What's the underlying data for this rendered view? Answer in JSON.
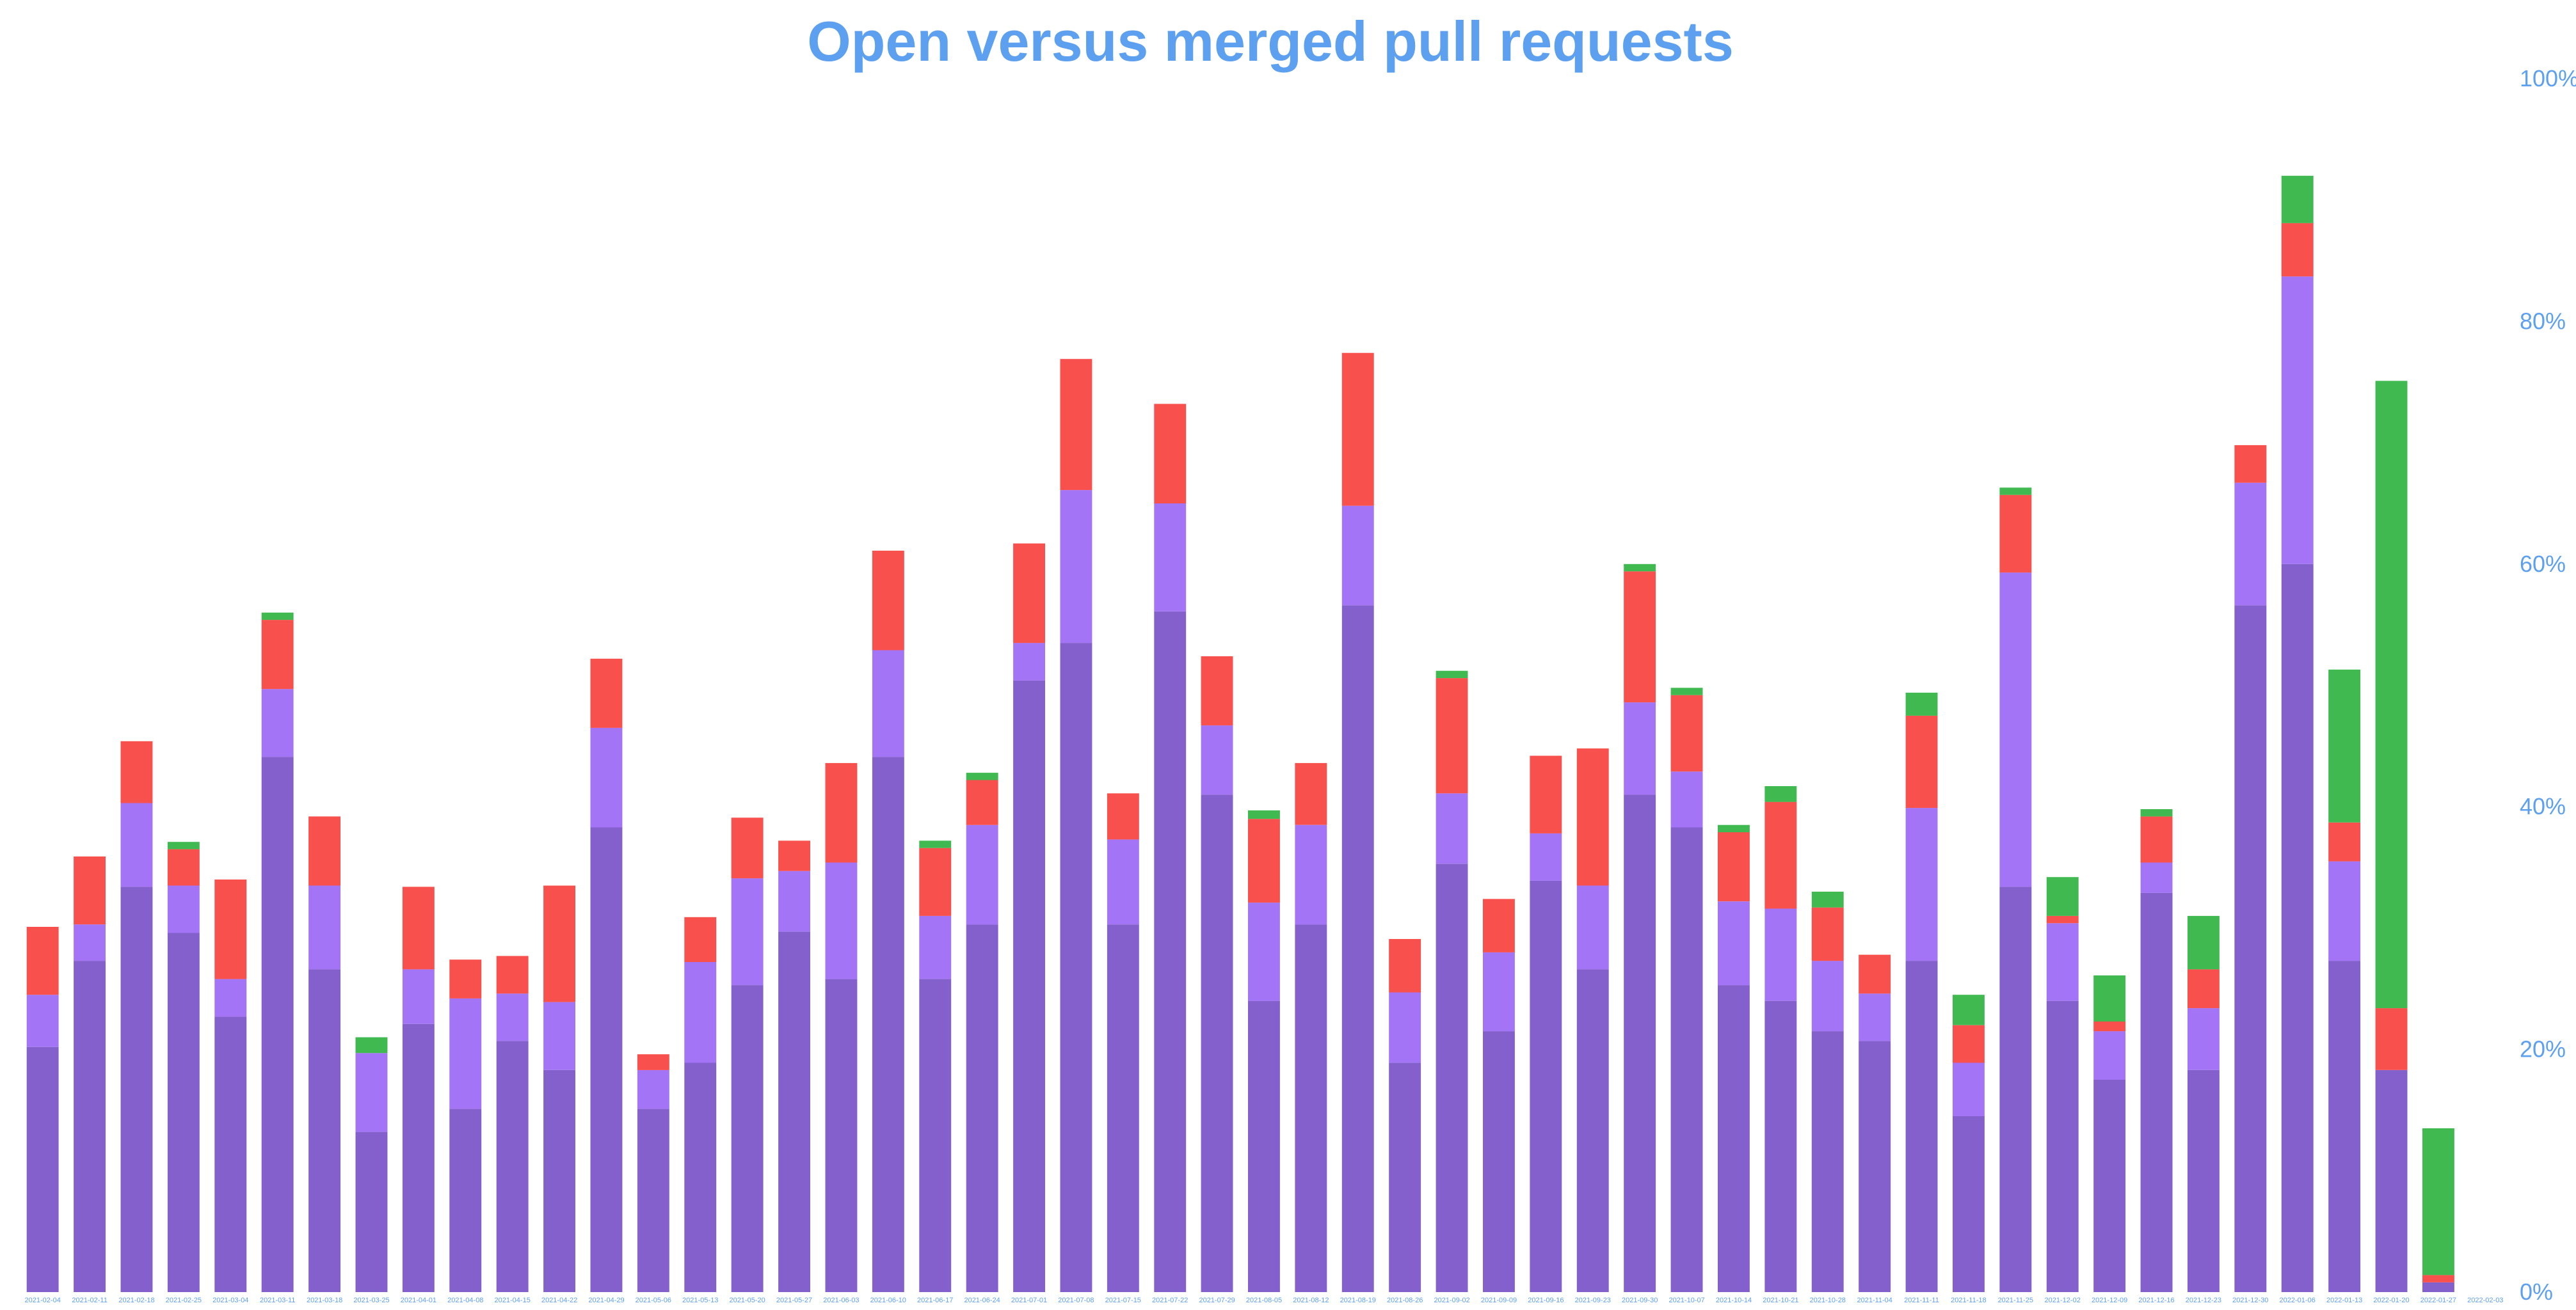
{
  "chart_data": {
    "type": "bar",
    "stacked": true,
    "title": "Open versus merged pull requests",
    "xlabel": "",
    "ylabel": "",
    "ylim": [
      0,
      100
    ],
    "y_axis_position": "right",
    "y_ticks": [
      "0%",
      "20%",
      "40%",
      "60%",
      "80%",
      "100%"
    ],
    "grid": false,
    "legend": "none",
    "colors": [
      "#8360cc",
      "#a375f6",
      "#f8504d",
      "#3fb950"
    ],
    "categories": [
      "2021-02-04",
      "2021-02-11",
      "2021-02-18",
      "2021-02-25",
      "2021-03-04",
      "2021-03-11",
      "2021-03-18",
      "2021-03-25",
      "2021-04-01",
      "2021-04-08",
      "2021-04-15",
      "2021-04-22",
      "2021-04-29",
      "2021-05-06",
      "2021-05-13",
      "2021-05-20",
      "2021-05-27",
      "2021-06-03",
      "2021-06-10",
      "2021-06-17",
      "2021-06-24",
      "2021-07-01",
      "2021-07-08",
      "2021-07-15",
      "2021-07-22",
      "2021-07-29",
      "2021-08-05",
      "2021-08-12",
      "2021-08-19",
      "2021-08-26",
      "2021-09-02",
      "2021-09-09",
      "2021-09-16",
      "2021-09-23",
      "2021-09-30",
      "2021-10-07",
      "2021-10-14",
      "2021-10-21",
      "2021-10-28",
      "2021-11-04",
      "2021-11-11",
      "2021-11-18",
      "2021-11-25",
      "2021-12-02",
      "2021-12-09",
      "2021-12-16",
      "2021-12-23",
      "2021-12-30",
      "2022-01-06",
      "2022-01-13",
      "2022-01-20",
      "2022-01-27",
      "2022-02-03"
    ],
    "series": [
      {
        "values": [
          20.2,
          27.3,
          33.4,
          29.6,
          22.7,
          44.1,
          26.6,
          13.2,
          22.1,
          15.1,
          20.7,
          18.3,
          38.3,
          15.1,
          18.9,
          25.3,
          29.7,
          25.8,
          44.1,
          25.8,
          30.3,
          50.4,
          53.5,
          30.3,
          56.1,
          41.0,
          24.0,
          30.3,
          56.6,
          18.9,
          35.3,
          21.5,
          33.9,
          26.6,
          41.0,
          38.3,
          25.3,
          24.0,
          21.5,
          20.7,
          27.3,
          14.5,
          33.4,
          24.0,
          17.5,
          32.9,
          18.3,
          56.6,
          60.0,
          27.3,
          18.3,
          0.8,
          0.0
        ]
      },
      {
        "values": [
          4.3,
          3.0,
          6.9,
          3.9,
          3.1,
          5.6,
          6.9,
          6.5,
          4.5,
          9.1,
          3.9,
          5.6,
          8.2,
          3.2,
          8.3,
          8.8,
          5.0,
          9.6,
          8.8,
          5.2,
          8.2,
          3.1,
          12.6,
          7.0,
          8.9,
          5.7,
          8.1,
          8.2,
          8.2,
          5.8,
          5.8,
          6.5,
          3.9,
          6.9,
          7.6,
          4.6,
          6.9,
          7.6,
          5.8,
          3.9,
          12.6,
          4.4,
          25.9,
          6.4,
          4.0,
          2.5,
          5.1,
          10.1,
          23.7,
          8.2,
          0.0,
          0.0,
          0.0
        ]
      },
      {
        "values": [
          5.6,
          5.6,
          5.1,
          3.0,
          8.2,
          5.7,
          5.7,
          0.0,
          6.8,
          3.2,
          3.1,
          9.6,
          5.7,
          1.3,
          3.7,
          5.0,
          2.5,
          8.2,
          8.2,
          5.6,
          3.7,
          8.2,
          10.8,
          3.8,
          8.2,
          5.7,
          6.9,
          5.1,
          12.6,
          4.4,
          9.5,
          4.4,
          6.4,
          11.3,
          10.8,
          6.3,
          5.7,
          8.8,
          4.4,
          3.2,
          7.6,
          3.1,
          6.4,
          0.6,
          0.8,
          3.8,
          3.2,
          3.1,
          4.4,
          3.2,
          5.1,
          0.6,
          0.0
        ]
      },
      {
        "values": [
          0.0,
          0.0,
          0.0,
          0.6,
          0.0,
          0.6,
          0.0,
          1.3,
          0.0,
          0.0,
          0.0,
          0.0,
          0.0,
          0.0,
          0.0,
          0.0,
          0.0,
          0.0,
          0.0,
          0.6,
          0.6,
          0.0,
          0.0,
          0.0,
          0.0,
          0.0,
          0.7,
          0.0,
          0.0,
          0.0,
          0.6,
          0.0,
          0.0,
          0.0,
          0.6,
          0.6,
          0.6,
          1.3,
          1.3,
          0.0,
          1.9,
          2.5,
          0.6,
          3.2,
          3.8,
          0.6,
          4.4,
          0.0,
          3.9,
          12.6,
          51.7,
          12.1,
          0.0
        ]
      }
    ]
  }
}
